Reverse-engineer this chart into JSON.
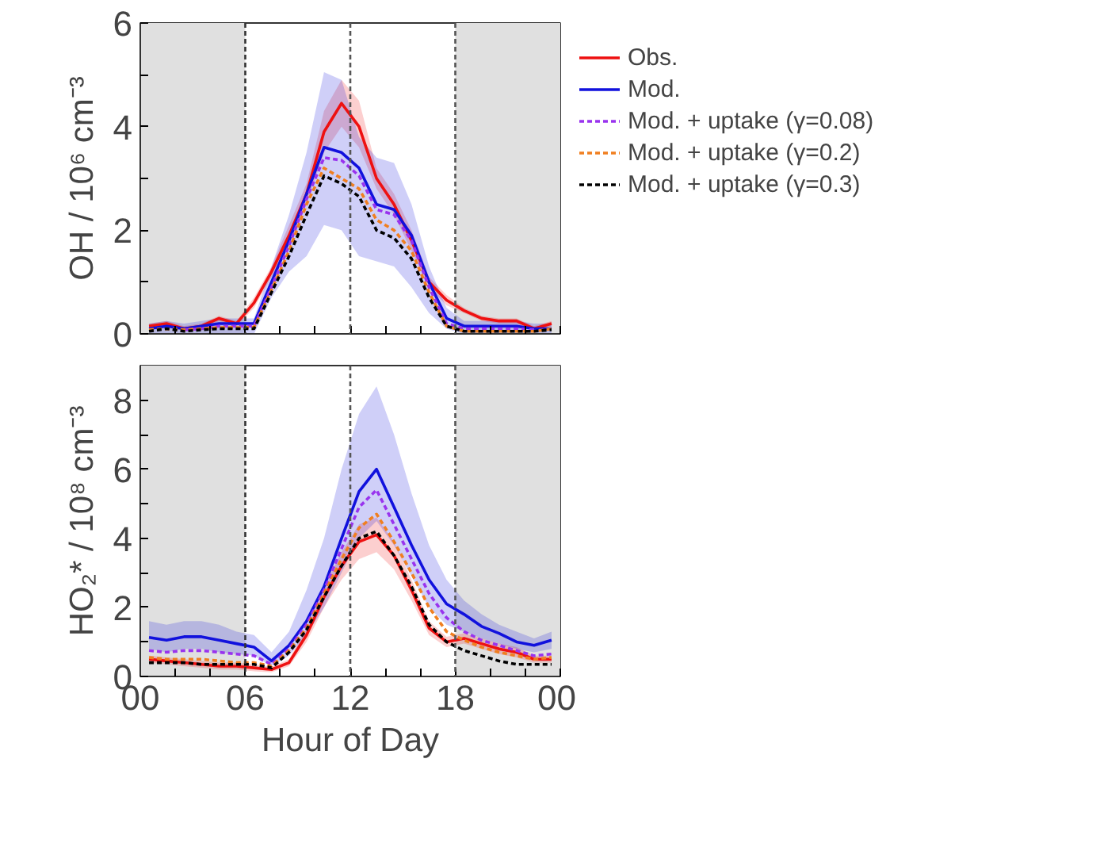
{
  "chart_data": [
    {
      "type": "line",
      "ylabel": "OH / 10⁶ cm⁻³",
      "x": [
        0.5,
        1.5,
        2.5,
        3.5,
        4.5,
        5.5,
        6.5,
        7.5,
        8.5,
        9.5,
        10.5,
        11.5,
        12.5,
        13.5,
        14.5,
        15.5,
        16.5,
        17.5,
        18.5,
        19.5,
        20.5,
        21.5,
        22.5,
        23.5
      ],
      "xlim": [
        0,
        24
      ],
      "xticks": [
        {
          "value": 0,
          "label": null
        },
        {
          "value": 2,
          "label": null
        },
        {
          "value": 4,
          "label": null
        },
        {
          "value": 6,
          "label": null
        },
        {
          "value": 8,
          "label": null
        },
        {
          "value": 10,
          "label": null
        },
        {
          "value": 12,
          "label": null
        },
        {
          "value": 14,
          "label": null
        },
        {
          "value": 16,
          "label": null
        },
        {
          "value": 18,
          "label": null
        },
        {
          "value": 20,
          "label": null
        },
        {
          "value": 22,
          "label": null
        },
        {
          "value": 24,
          "label": null
        }
      ],
      "ylim": [
        0,
        6
      ],
      "yticks": [
        0,
        {
          "value": 1,
          "label": null
        },
        2,
        {
          "value": 3,
          "label": null
        },
        4,
        {
          "value": 5,
          "label": null
        },
        6
      ],
      "tick_labels": "y",
      "grid": false,
      "legend": "right",
      "marker": "none",
      "bands": [
        {
          "axis": "x",
          "from": 0,
          "to": 6,
          "color": "#e0e0e0"
        },
        {
          "axis": "x",
          "from": 18,
          "to": 24,
          "color": "#e0e0e0"
        }
      ],
      "ref_lines": [
        {
          "axis": "x",
          "value": 6,
          "color": "#333333",
          "line_style": "dashed"
        },
        {
          "axis": "x",
          "value": 12,
          "color": "#555555",
          "line_style": "dashed"
        },
        {
          "axis": "x",
          "value": 18,
          "color": "#555555",
          "line_style": "dashed"
        }
      ],
      "series": [
        {
          "name": "Obs.",
          "color": "#ee1111",
          "line_style": "solid",
          "values": [
            0.15,
            0.2,
            0.1,
            0.15,
            0.3,
            0.2,
            0.6,
            1.2,
            1.9,
            2.7,
            3.9,
            4.45,
            4.0,
            3.0,
            2.5,
            1.8,
            1.0,
            0.65,
            0.45,
            0.3,
            0.25,
            0.25,
            0.1,
            0.2
          ],
          "lower": [
            0.1,
            0.15,
            0.05,
            0.1,
            0.25,
            0.15,
            0.5,
            1.1,
            1.7,
            2.5,
            3.5,
            4.0,
            3.6,
            2.8,
            2.3,
            1.6,
            0.9,
            0.55,
            0.4,
            0.25,
            0.2,
            0.2,
            0.05,
            0.15
          ],
          "upper": [
            0.2,
            0.25,
            0.15,
            0.2,
            0.35,
            0.25,
            0.7,
            1.3,
            2.1,
            2.9,
            4.3,
            4.9,
            4.5,
            3.2,
            2.7,
            2.0,
            1.1,
            0.75,
            0.5,
            0.35,
            0.3,
            0.3,
            0.15,
            0.25
          ]
        },
        {
          "name": "Mod.",
          "color": "#1111dd",
          "line_style": "solid",
          "values": [
            0.1,
            0.15,
            0.1,
            0.15,
            0.2,
            0.2,
            0.2,
            1.0,
            1.8,
            2.7,
            3.6,
            3.5,
            3.2,
            2.5,
            2.4,
            1.9,
            1.0,
            0.3,
            0.15,
            0.15,
            0.15,
            0.15,
            0.1,
            0.1
          ],
          "lower": [
            0,
            0,
            0,
            0,
            0,
            0,
            0,
            0.7,
            1.2,
            1.5,
            2.1,
            2.0,
            1.5,
            1.4,
            1.3,
            0.9,
            0.4,
            0.1,
            0,
            0,
            0,
            0,
            0,
            0
          ],
          "upper": [
            0.2,
            0.25,
            0.2,
            0.25,
            0.3,
            0.3,
            0.3,
            1.3,
            2.3,
            3.5,
            5.05,
            4.9,
            3.8,
            3.4,
            3.3,
            2.5,
            1.3,
            0.5,
            0.25,
            0.25,
            0.25,
            0.25,
            0.2,
            0.2
          ]
        },
        {
          "name": "Mod. + uptake (γ=0.08)",
          "color": "#9933ee",
          "line_style": "dashed",
          "values": [
            null,
            null,
            0.08,
            0.1,
            0.15,
            0.15,
            0.15,
            0.9,
            1.7,
            2.6,
            3.4,
            3.35,
            3.05,
            2.4,
            2.3,
            1.8,
            0.9,
            0.2,
            0.1,
            0.1,
            0.1,
            0.1,
            0.08,
            null
          ]
        },
        {
          "name": "Mod. + uptake (γ=0.2)",
          "color": "#f07f20",
          "line_style": "dashed",
          "values": [
            0.08,
            0.1,
            0.08,
            0.1,
            0.12,
            0.12,
            0.13,
            0.85,
            1.6,
            2.5,
            3.2,
            3.0,
            2.8,
            2.2,
            2.0,
            1.6,
            0.8,
            0.15,
            0.05,
            0.05,
            0.05,
            0.05,
            0.05,
            0.1
          ]
        },
        {
          "name": "Mod. + uptake (γ=0.3)",
          "color": "#000000",
          "line_style": "dashed",
          "values": [
            0.05,
            0.1,
            0.05,
            0.08,
            0.1,
            0.1,
            0.1,
            0.8,
            1.5,
            2.3,
            3.05,
            2.9,
            2.65,
            2.0,
            1.85,
            1.45,
            0.7,
            0.15,
            0.05,
            0.05,
            0.05,
            0.05,
            0.05,
            0.08
          ]
        }
      ]
    },
    {
      "type": "line",
      "ylabel": "HO₂* / 10⁸ cm⁻³",
      "xlabel": "Hour of Day",
      "x": [
        0.5,
        1.5,
        2.5,
        3.5,
        4.5,
        5.5,
        6.5,
        7.5,
        8.5,
        9.5,
        10.5,
        11.5,
        12.5,
        13.5,
        14.5,
        15.5,
        16.5,
        17.5,
        18.5,
        19.5,
        20.5,
        21.5,
        22.5,
        23.5
      ],
      "xlim": [
        0,
        24
      ],
      "xticks": [
        {
          "value": 0,
          "label": "00"
        },
        {
          "value": 2,
          "label": null
        },
        {
          "value": 4,
          "label": null
        },
        {
          "value": 6,
          "label": "06"
        },
        {
          "value": 8,
          "label": null
        },
        {
          "value": 10,
          "label": null
        },
        {
          "value": 12,
          "label": "12"
        },
        {
          "value": 14,
          "label": null
        },
        {
          "value": 16,
          "label": null
        },
        {
          "value": 18,
          "label": "18"
        },
        {
          "value": 20,
          "label": null
        },
        {
          "value": 22,
          "label": null
        },
        {
          "value": 24,
          "label": "00"
        }
      ],
      "ylim": [
        0,
        9
      ],
      "yticks": [
        0,
        {
          "value": 1,
          "label": null
        },
        2,
        {
          "value": 3,
          "label": null
        },
        4,
        {
          "value": 5,
          "label": null
        },
        6,
        {
          "value": 7,
          "label": null
        },
        8
      ],
      "grid": false,
      "marker": "none",
      "bands": [
        {
          "axis": "x",
          "from": 0,
          "to": 6,
          "color": "#e0e0e0"
        },
        {
          "axis": "x",
          "from": 18,
          "to": 24,
          "color": "#e0e0e0"
        }
      ],
      "ref_lines": [
        {
          "axis": "x",
          "value": 6,
          "color": "#333333",
          "line_style": "dashed"
        },
        {
          "axis": "x",
          "value": 12,
          "color": "#555555",
          "line_style": "dashed"
        },
        {
          "axis": "x",
          "value": 18,
          "color": "#555555",
          "line_style": "dashed"
        }
      ],
      "series": [
        {
          "color": "#ee1111",
          "line_style": "solid",
          "values": [
            0.5,
            0.45,
            0.4,
            0.35,
            0.3,
            0.3,
            0.25,
            0.2,
            0.4,
            1.2,
            2.3,
            3.2,
            3.9,
            4.1,
            3.5,
            2.5,
            1.4,
            1.0,
            1.1,
            0.95,
            0.8,
            0.7,
            0.5,
            0.5
          ],
          "lower": [
            0.4,
            0.35,
            0.3,
            0.25,
            0.2,
            0.2,
            0.15,
            0.12,
            0.3,
            1.0,
            2.0,
            2.8,
            3.4,
            3.6,
            3.1,
            2.2,
            1.2,
            0.85,
            0.95,
            0.8,
            0.65,
            0.55,
            0.4,
            0.4
          ],
          "upper": [
            0.6,
            0.55,
            0.5,
            0.45,
            0.4,
            0.4,
            0.35,
            0.28,
            0.5,
            1.4,
            2.6,
            3.6,
            4.4,
            4.6,
            3.9,
            2.8,
            1.6,
            1.15,
            1.25,
            1.1,
            0.95,
            0.85,
            0.6,
            0.6
          ]
        },
        {
          "color": "#1111dd",
          "line_style": "solid",
          "values": [
            1.13,
            1.05,
            1.15,
            1.15,
            1.05,
            0.95,
            0.85,
            0.45,
            0.9,
            1.6,
            2.6,
            4.0,
            5.35,
            6.0,
            4.9,
            3.8,
            2.8,
            2.1,
            1.8,
            1.45,
            1.25,
            1.0,
            0.9,
            1.05
          ],
          "lower": [
            0.8,
            0.7,
            0.8,
            0.8,
            0.7,
            0.65,
            0.6,
            0.3,
            0.6,
            1.2,
            2.0,
            3.0,
            4.0,
            4.5,
            3.8,
            2.9,
            2.0,
            1.5,
            1.3,
            1.1,
            0.95,
            0.8,
            0.7,
            0.8
          ],
          "upper": [
            1.6,
            1.5,
            1.6,
            1.6,
            1.5,
            1.3,
            1.2,
            0.7,
            1.3,
            2.5,
            4.0,
            6.0,
            7.6,
            8.4,
            7.0,
            5.3,
            3.8,
            2.8,
            2.2,
            1.8,
            1.5,
            1.3,
            1.1,
            1.3
          ]
        },
        {
          "color": "#9933ee",
          "line_style": "dashed",
          "values": [
            0.75,
            0.7,
            0.75,
            0.75,
            0.7,
            0.65,
            0.6,
            0.35,
            0.8,
            1.5,
            2.5,
            3.7,
            4.9,
            5.4,
            4.4,
            3.4,
            2.4,
            1.7,
            1.3,
            1.05,
            0.9,
            0.75,
            0.6,
            0.65
          ]
        },
        {
          "color": "#f07f20",
          "line_style": "dashed",
          "values": [
            0.55,
            0.5,
            0.5,
            0.5,
            0.45,
            0.4,
            0.4,
            0.3,
            0.75,
            1.4,
            2.4,
            3.4,
            4.3,
            4.7,
            3.9,
            3.0,
            2.0,
            1.3,
            1.05,
            0.85,
            0.7,
            0.6,
            0.5,
            0.55
          ]
        },
        {
          "color": "#000000",
          "line_style": "dashed",
          "values": [
            0.4,
            0.4,
            0.4,
            0.35,
            0.35,
            0.35,
            0.35,
            0.25,
            0.7,
            1.35,
            2.3,
            3.2,
            4.0,
            4.2,
            3.5,
            2.6,
            1.5,
            1.0,
            0.75,
            0.6,
            0.45,
            0.35,
            0.35,
            0.35
          ]
        }
      ]
    }
  ]
}
